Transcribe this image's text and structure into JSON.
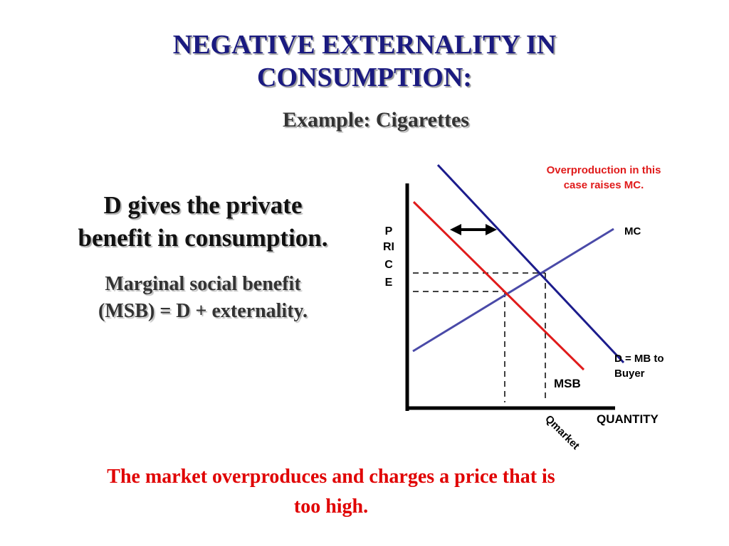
{
  "title": {
    "line1": "NEGATIVE EXTERNALITY IN",
    "line2": "CONSUMPTION:"
  },
  "subtitle": "Example:  Cigarettes",
  "left_text": {
    "main_line1": "D gives the private",
    "main_line2": "benefit in consumption.",
    "secondary_line1": "Marginal social benefit",
    "secondary_line2": "(MSB) = D + externality."
  },
  "bottom_text": {
    "line1": "The market overproduces and charges a price that is",
    "line2": "too high."
  },
  "diagram": {
    "annotation": {
      "line1": "Overproduction in this",
      "line2": "case raises MC."
    },
    "price_axis_label": [
      "P",
      "RI",
      "C",
      "E"
    ],
    "quantity_axis_label": "QUANTITY",
    "q_market_label": "Qmarket",
    "curves": {
      "mc_label": "MC",
      "demand_label_line1": "D = MB to",
      "demand_label_line2": "Buyer",
      "msb_label": "MSB"
    },
    "colors": {
      "demand": "#1c1c8c",
      "mc": "#4a4aa8",
      "msb": "#e01b1b",
      "annotation": "#e01b1b",
      "axis": "#000000"
    }
  }
}
